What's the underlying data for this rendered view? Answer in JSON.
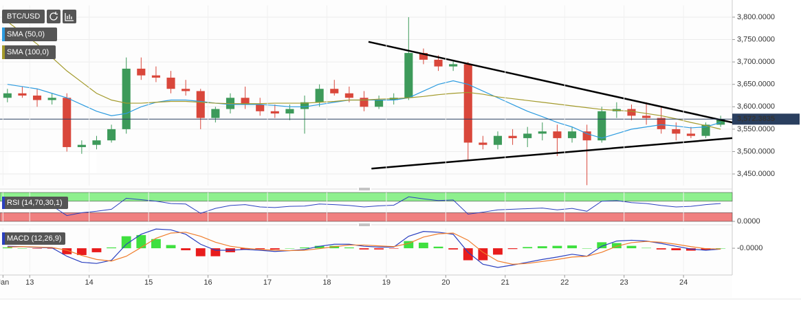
{
  "chart_data": [
    {
      "type": "candlestick",
      "name": "BTC/USD",
      "x": [
        12.625,
        12.875,
        13.125,
        13.375,
        13.625,
        13.875,
        14.125,
        14.375,
        14.625,
        14.875,
        15.125,
        15.375,
        15.625,
        15.875,
        16.125,
        16.375,
        16.625,
        16.875,
        17.125,
        17.375,
        17.625,
        17.875,
        18.125,
        18.375,
        18.625,
        18.875,
        19.125,
        19.375,
        19.625,
        19.875,
        20.125,
        20.375,
        20.625,
        20.875,
        21.125,
        21.375,
        21.625,
        21.875,
        22.125,
        22.375,
        22.625,
        22.875,
        23.125,
        23.375,
        23.625,
        23.875,
        24.125,
        24.375,
        24.625
      ],
      "open": [
        3620,
        3630,
        3625,
        3615,
        3620,
        3510,
        3515,
        3525,
        3550,
        3685,
        3670,
        3665,
        3640,
        3635,
        3575,
        3595,
        3620,
        3605,
        3590,
        3585,
        3595,
        3610,
        3640,
        3630,
        3620,
        3600,
        3615,
        3620,
        3720,
        3705,
        3690,
        3695,
        3520,
        3515,
        3535,
        3530,
        3540,
        3545,
        3530,
        3545,
        3525,
        3590,
        3595,
        3580,
        3575,
        3550,
        3540,
        3535,
        3560
      ],
      "high": [
        3640,
        3645,
        3640,
        3630,
        3630,
        3525,
        3535,
        3560,
        3710,
        3710,
        3690,
        3680,
        3660,
        3640,
        3600,
        3630,
        3645,
        3620,
        3605,
        3605,
        3625,
        3650,
        3660,
        3645,
        3635,
        3625,
        3630,
        3800,
        3730,
        3715,
        3705,
        3700,
        3535,
        3545,
        3550,
        3555,
        3565,
        3560,
        3555,
        3560,
        3600,
        3610,
        3605,
        3610,
        3600,
        3565,
        3555,
        3565,
        3580
      ],
      "low": [
        3610,
        3620,
        3600,
        3605,
        3500,
        3495,
        3505,
        3520,
        3540,
        3660,
        3655,
        3630,
        3625,
        3550,
        3565,
        3585,
        3595,
        3580,
        3575,
        3570,
        3540,
        3600,
        3625,
        3610,
        3590,
        3595,
        3605,
        3615,
        3695,
        3680,
        3680,
        3480,
        3505,
        3505,
        3515,
        3510,
        3525,
        3490,
        3520,
        3425,
        3520,
        3575,
        3570,
        3560,
        3540,
        3525,
        3530,
        3530,
        3555
      ],
      "close": [
        3630,
        3625,
        3615,
        3620,
        3510,
        3515,
        3525,
        3550,
        3685,
        3670,
        3665,
        3640,
        3635,
        3575,
        3595,
        3620,
        3605,
        3590,
        3585,
        3595,
        3610,
        3640,
        3630,
        3620,
        3600,
        3615,
        3620,
        3720,
        3705,
        3690,
        3695,
        3520,
        3515,
        3535,
        3530,
        3540,
        3545,
        3530,
        3545,
        3525,
        3590,
        3595,
        3580,
        3575,
        3550,
        3540,
        3535,
        3560,
        3572.3835
      ],
      "up_color": "#3d9a5a",
      "down_color": "#d9473b",
      "series": [
        {
          "name": "SMA (50,0)",
          "color": "#2b9be0",
          "values": [
            3650,
            3645,
            3640,
            3630,
            3620,
            3605,
            3590,
            3580,
            3585,
            3600,
            3610,
            3615,
            3615,
            3612,
            3608,
            3605,
            3605,
            3605,
            3603,
            3600,
            3600,
            3605,
            3610,
            3615,
            3615,
            3615,
            3615,
            3620,
            3635,
            3650,
            3658,
            3650,
            3635,
            3620,
            3605,
            3590,
            3578,
            3565,
            3555,
            3540,
            3530,
            3540,
            3550,
            3555,
            3560,
            3557,
            3553,
            3555,
            3565
          ]
        },
        {
          "name": "SMA (100,0)",
          "color": "#a39a2b",
          "values": [
            3790,
            3765,
            3740,
            3710,
            3680,
            3655,
            3630,
            3615,
            3608,
            3608,
            3610,
            3612,
            3612,
            3610,
            3608,
            3607,
            3607,
            3607,
            3608,
            3608,
            3608,
            3610,
            3612,
            3615,
            3615,
            3617,
            3618,
            3620,
            3623,
            3627,
            3630,
            3632,
            3628,
            3622,
            3618,
            3614,
            3610,
            3606,
            3602,
            3598,
            3594,
            3592,
            3590,
            3585,
            3580,
            3573,
            3565,
            3558,
            3550
          ]
        }
      ],
      "trendlines": [
        {
          "x": [
            18.7,
            24.82
          ],
          "y": [
            3745,
            3565
          ]
        },
        {
          "x": [
            18.75,
            24.82
          ],
          "y": [
            3462,
            3530
          ]
        }
      ],
      "last_price": {
        "value": 3572.3835,
        "label": "3,572.3835"
      },
      "xlim": [
        12.5,
        24.82
      ],
      "ylim": [
        3424,
        3826
      ],
      "yticks": [
        {
          "value": 3450,
          "label": "3,450.0000"
        },
        {
          "value": 3500,
          "label": "3,500.0000"
        },
        {
          "value": 3550,
          "label": "3,550.0000"
        },
        {
          "value": 3600,
          "label": "3,600.0000"
        },
        {
          "value": 3650,
          "label": "3,650.0000"
        },
        {
          "value": 3700,
          "label": "3,700.0000"
        },
        {
          "value": 3750,
          "label": "3,750.0000"
        },
        {
          "value": 3800,
          "label": "3,800.0000"
        }
      ],
      "grid": true
    },
    {
      "type": "rsi",
      "name": "RSI (14,70,30,1)",
      "color": "#2a3fbf",
      "x": [
        12.625,
        12.875,
        13.125,
        13.375,
        13.625,
        13.875,
        14.125,
        14.375,
        14.625,
        14.875,
        15.125,
        15.375,
        15.625,
        15.875,
        16.125,
        16.375,
        16.625,
        16.875,
        17.125,
        17.375,
        17.625,
        17.875,
        18.125,
        18.375,
        18.625,
        18.875,
        19.125,
        19.375,
        19.625,
        19.875,
        20.125,
        20.375,
        20.625,
        20.875,
        21.125,
        21.375,
        21.625,
        21.875,
        22.125,
        22.375,
        22.625,
        22.875,
        23.125,
        23.375,
        23.625,
        23.875,
        24.125,
        24.375,
        24.625
      ],
      "values": [
        55,
        56,
        52,
        54,
        20,
        30,
        35,
        42,
        80,
        75,
        70,
        62,
        60,
        28,
        45,
        55,
        58,
        50,
        48,
        52,
        53,
        60,
        58,
        55,
        50,
        54,
        56,
        85,
        78,
        72,
        74,
        25,
        32,
        40,
        42,
        44,
        46,
        40,
        45,
        35,
        70,
        72,
        65,
        62,
        55,
        50,
        52,
        58,
        62
      ],
      "bands": {
        "upper": 70,
        "lower": 30,
        "upper_color": "#8ef08e",
        "lower_color": "#f08080"
      },
      "xlim": [
        12.5,
        24.82
      ],
      "ylim": [
        0,
        100
      ],
      "yticks": [
        {
          "value": 0,
          "label": "0.0000"
        }
      ]
    },
    {
      "type": "macd",
      "name": "MACD (12,26,9)",
      "x": [
        12.625,
        12.875,
        13.125,
        13.375,
        13.625,
        13.875,
        14.125,
        14.375,
        14.625,
        14.875,
        15.125,
        15.375,
        15.625,
        15.875,
        16.125,
        16.375,
        16.625,
        16.875,
        17.125,
        17.375,
        17.625,
        17.875,
        18.125,
        18.375,
        18.625,
        18.875,
        19.125,
        19.375,
        19.625,
        19.875,
        20.125,
        20.375,
        20.625,
        20.875,
        21.125,
        21.375,
        21.625,
        21.875,
        22.125,
        22.375,
        22.625,
        22.875,
        23.125,
        23.375,
        23.625,
        23.875,
        24.125,
        24.375,
        24.625
      ],
      "macd": [
        5,
        4,
        2,
        1,
        -20,
        -35,
        -38,
        -30,
        10,
        35,
        48,
        46,
        35,
        10,
        -5,
        -5,
        -3,
        -5,
        -8,
        -6,
        -3,
        5,
        10,
        10,
        5,
        3,
        3,
        30,
        42,
        40,
        35,
        -10,
        -40,
        -48,
        -42,
        -35,
        -28,
        -22,
        -15,
        -20,
        5,
        18,
        20,
        18,
        12,
        5,
        -2,
        -5,
        -2
      ],
      "signal": [
        3,
        4,
        3,
        2,
        -5,
        -18,
        -28,
        -32,
        -20,
        2,
        25,
        38,
        40,
        30,
        15,
        5,
        0,
        -3,
        -5,
        -6,
        -5,
        -1,
        4,
        8,
        8,
        6,
        4,
        12,
        28,
        36,
        38,
        20,
        -10,
        -32,
        -40,
        -38,
        -33,
        -28,
        -22,
        -20,
        -10,
        5,
        14,
        17,
        15,
        10,
        4,
        -1,
        -2
      ],
      "histogram": [
        2,
        0,
        -1,
        -1,
        -15,
        -17,
        -10,
        2,
        30,
        33,
        23,
        8,
        -5,
        -20,
        -20,
        -10,
        -3,
        -2,
        -3,
        0,
        2,
        6,
        6,
        2,
        -3,
        -3,
        -1,
        18,
        14,
        4,
        -3,
        -30,
        -30,
        -16,
        -2,
        3,
        5,
        6,
        7,
        0,
        15,
        13,
        6,
        1,
        -3,
        -5,
        -6,
        -4,
        0
      ],
      "macd_color": "#2a3fbf",
      "signal_color": "#f07c2a",
      "up_color": "#3fe03f",
      "down_color": "#e81c1c",
      "xlim": [
        12.5,
        24.82
      ],
      "ylim": [
        -60,
        50
      ],
      "yticks": [
        {
          "value": 0,
          "label": "-0.0000"
        }
      ],
      "xticks": [
        {
          "value": 12.55,
          "label": "Jan"
        },
        13,
        14,
        15,
        16,
        17,
        18,
        19,
        20,
        21,
        22,
        23,
        24
      ]
    }
  ]
}
